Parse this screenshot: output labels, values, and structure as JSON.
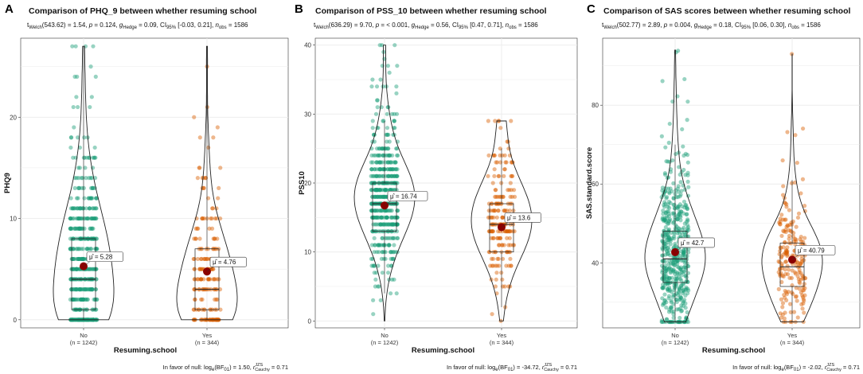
{
  "chart_data": [
    {
      "type": "violin",
      "panel": "A",
      "title": "Comparison of PHQ_9 between whether resuming school",
      "subtitle": "t_Welch(543.62) = 1.54, p = 0.124, g_Hedge = 0.09, CI95% [-0.03, 0.21], n_obs = 1586",
      "subtitle_parts": {
        "stat": "(543.62) = 1.54, ",
        "p": "p",
        "pval": " = 0.124, ",
        "g": "g",
        "gval": " = 0.09, CI",
        "ci": " [-0.03, 0.21], ",
        "n": "n",
        "nval": " = 1586"
      },
      "xlabel": "Resuming.school",
      "ylabel": "PHQ9",
      "ylim": [
        -0.8,
        27.8
      ],
      "yticks": [
        0,
        10,
        20
      ],
      "caption": "In favor of null: log_e(BF01) = 1.50, r_Cauchy^JZS = 0.71",
      "caption_parts": {
        "pre": "In favor of null: log",
        "post": " = 1.50, ",
        "r": "r",
        "rval": " = 0.71"
      },
      "groups": [
        {
          "name": "No",
          "n_label": "(n = 1242)",
          "mean": 5.28,
          "mean_label": "μ̂ = 5.28",
          "q1": 1,
          "median": 4,
          "q3": 8,
          "whisker_low": 0,
          "whisker_high": 27,
          "min": 0,
          "max": 27
        },
        {
          "name": "Yes",
          "n_label": "(n = 344)",
          "mean": 4.76,
          "mean_label": "μ̂ = 4.76",
          "q1": 1,
          "median": 3,
          "q3": 7,
          "whisker_low": 0,
          "whisker_high": 27,
          "min": 0,
          "max": 27
        }
      ]
    },
    {
      "type": "violin",
      "panel": "B",
      "title": "Comparison of PSS_10 between whether resuming school",
      "subtitle": "t_Welch(636.29) = 9.70, p = < 0.001, g_Hedge = 0.56, CI95% [0.47, 0.71], n_obs = 1586",
      "subtitle_parts": {
        "stat": "(636.29) = 9.70, ",
        "p": "p",
        "pval": " = < 0.001, ",
        "g": "g",
        "gval": " = 0.56, CI",
        "ci": " [0.47, 0.71], ",
        "n": "n",
        "nval": " = 1586"
      },
      "xlabel": "Resuming.school",
      "ylabel": "PSS10",
      "ylim": [
        -1,
        41
      ],
      "yticks": [
        0,
        10,
        20,
        30,
        40
      ],
      "caption": "In favor of null: log_e(BF01) = -34.72, r_Cauchy^JZS = 0.71",
      "caption_parts": {
        "pre": "In favor of null: log",
        "post": " = -34.72, ",
        "r": "r",
        "rval": " = 0.71"
      },
      "groups": [
        {
          "name": "No",
          "n_label": "(n = 1242)",
          "mean": 16.74,
          "mean_label": "μ̂ = 16.74",
          "q1": 13,
          "median": 17,
          "q3": 20,
          "whisker_low": 4,
          "whisker_high": 29,
          "min": 0,
          "max": 40
        },
        {
          "name": "Yes",
          "n_label": "(n = 344)",
          "mean": 13.6,
          "mean_label": "μ̂ = 13.6",
          "q1": 10,
          "median": 14,
          "q3": 17,
          "whisker_low": 2,
          "whisker_high": 25,
          "min": 0,
          "max": 29
        }
      ]
    },
    {
      "type": "violin",
      "panel": "C",
      "title": "Comparison of SAS scores between whether resuming school",
      "subtitle": "t_Welch(502.77) = 2.89, p = 0.004, g_Hedge = 0.18, CI95% [0.06, 0.30], n_obs = 1586",
      "subtitle_parts": {
        "stat": "(502.77) = 2.89, ",
        "p": "p",
        "pval": " = 0.004, ",
        "g": "g",
        "gval": " = 0.18, CI",
        "ci": " [0.06, 0.30], ",
        "n": "n",
        "nval": " = 1586"
      },
      "xlabel": "Resuming.school",
      "ylabel": "SAS.standard.score",
      "ylim": [
        23.5,
        97
      ],
      "yticks": [
        40,
        60,
        80
      ],
      "caption": "In favor of null: log_e(BF01) = -2.02, r_Cauchy^JZS = 0.71",
      "caption_parts": {
        "pre": "In favor of null: log",
        "post": " = -2.02, ",
        "r": "r",
        "rval": " = 0.71"
      },
      "groups": [
        {
          "name": "No",
          "n_label": "(n = 1242)",
          "mean": 42.7,
          "mean_label": "μ̂ = 42.7",
          "q1": 35,
          "median": 41,
          "q3": 48,
          "whisker_low": 25,
          "whisker_high": 70,
          "min": 25,
          "max": 94
        },
        {
          "name": "Yes",
          "n_label": "(n = 344)",
          "mean": 40.79,
          "mean_label": "μ̂ = 40.79",
          "q1": 34,
          "median": 39,
          "q3": 45,
          "whisker_low": 25,
          "whisker_high": 61,
          "min": 25,
          "max": 93
        }
      ]
    }
  ],
  "colors": {
    "No": "#1b9e77",
    "Yes": "#d95f02",
    "mean_point": "#8b0000",
    "grid": "#ebebeb"
  }
}
